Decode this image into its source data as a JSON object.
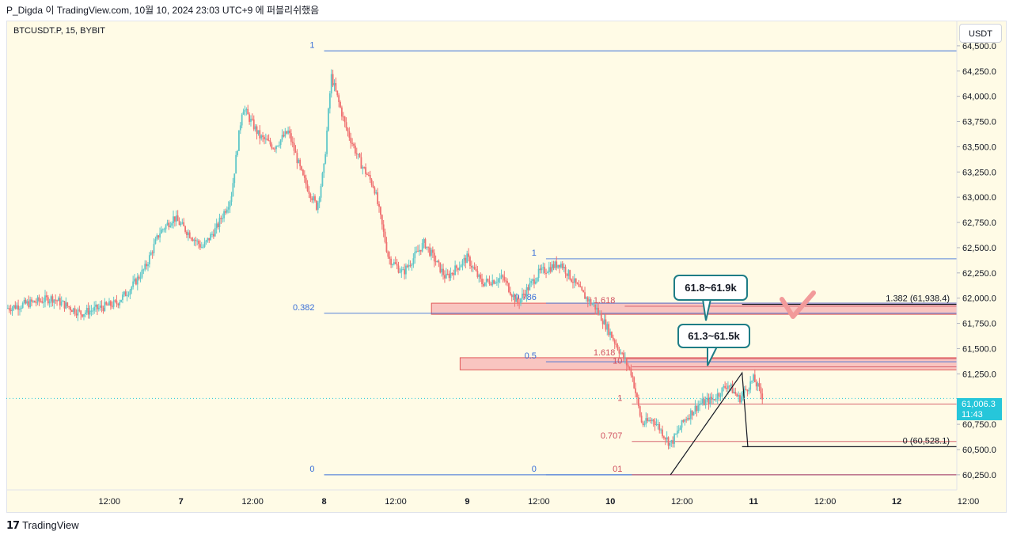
{
  "header": {
    "caption": "P_Digda 이 TradingView.com, 10월 10, 2024 23:03 UTC+9 에 퍼블리쉬했음"
  },
  "chart_header": {
    "symbol": "BTCUSDT.P, 15, BYBIT"
  },
  "axis": {
    "currency": "USDT",
    "price_ticks": [
      {
        "value": 64500,
        "label": "64,500.0"
      },
      {
        "value": 64250,
        "label": "64,250.0"
      },
      {
        "value": 64000,
        "label": "64,000.0"
      },
      {
        "value": 63750,
        "label": "63,750.0"
      },
      {
        "value": 63500,
        "label": "63,500.0"
      },
      {
        "value": 63250,
        "label": "63,250.0"
      },
      {
        "value": 63000,
        "label": "63,000.0"
      },
      {
        "value": 62750,
        "label": "62,750.0"
      },
      {
        "value": 62500,
        "label": "62,500.0"
      },
      {
        "value": 62250,
        "label": "62,250.0"
      },
      {
        "value": 62000,
        "label": "62,000.0"
      },
      {
        "value": 61750,
        "label": "61,750.0"
      },
      {
        "value": 61500,
        "label": "61,500.0"
      },
      {
        "value": 61250,
        "label": "61,250.0"
      },
      {
        "value": 60750,
        "label": "60,750.0"
      },
      {
        "value": 60500,
        "label": "60,500.0"
      },
      {
        "value": 60250,
        "label": "60,250.0"
      }
    ],
    "time_ticks": [
      {
        "t": 0.5,
        "label": "12:00"
      },
      {
        "t": 1,
        "label": "7"
      },
      {
        "t": 1.5,
        "label": "12:00"
      },
      {
        "t": 2,
        "label": "8"
      },
      {
        "t": 2.5,
        "label": "12:00"
      },
      {
        "t": 3,
        "label": "9"
      },
      {
        "t": 3.5,
        "label": "12:00"
      },
      {
        "t": 4,
        "label": "10"
      },
      {
        "t": 4.5,
        "label": "12:00"
      },
      {
        "t": 5,
        "label": "11"
      },
      {
        "t": 5.5,
        "label": "12:00"
      },
      {
        "t": 6,
        "label": "12"
      },
      {
        "t": 6.5,
        "label": "12:00"
      }
    ],
    "current_price": "61,006.3",
    "countdown": "11:43"
  },
  "annotations": {
    "upper_callout": "61.8~61.9k",
    "lower_callout": "61.3~61.5k"
  },
  "colors": {
    "background": "#fffbe6",
    "up": "#5fc7c9",
    "down": "#ef7070",
    "fib_blue": "#3a6fd8",
    "fib_red": "#d0505f",
    "zone_fill": "#f7b3b3",
    "zone_border": "#e05757",
    "check": "#f29a9a",
    "callout_border": "#1e7d86"
  },
  "chart_data": {
    "type": "candlestick",
    "title": "BTCUSDT.P, 15, BYBIT",
    "x_unit": "days since 6 Oct 00:00",
    "ylim": [
      60100,
      64750
    ],
    "xlim": [
      -0.22,
      6.42
    ],
    "current_price": 61006.3,
    "price_anchors": [
      {
        "t": -0.22,
        "price": 61900
      },
      {
        "t": 0.1,
        "price": 62000
      },
      {
        "t": 0.3,
        "price": 61850
      },
      {
        "t": 0.55,
        "price": 61950
      },
      {
        "t": 0.65,
        "price": 62100
      },
      {
        "t": 0.75,
        "price": 62300
      },
      {
        "t": 0.85,
        "price": 62650
      },
      {
        "t": 0.95,
        "price": 62800
      },
      {
        "t": 1.05,
        "price": 62650
      },
      {
        "t": 1.15,
        "price": 62500
      },
      {
        "t": 1.25,
        "price": 62700
      },
      {
        "t": 1.35,
        "price": 63000
      },
      {
        "t": 1.43,
        "price": 63900
      },
      {
        "t": 1.55,
        "price": 63600
      },
      {
        "t": 1.65,
        "price": 63500
      },
      {
        "t": 1.75,
        "price": 63650
      },
      {
        "t": 1.85,
        "price": 63200
      },
      {
        "t": 1.95,
        "price": 62900
      },
      {
        "t": 2.0,
        "price": 63300
      },
      {
        "t": 2.05,
        "price": 64200
      },
      {
        "t": 2.15,
        "price": 63700
      },
      {
        "t": 2.25,
        "price": 63350
      },
      {
        "t": 2.35,
        "price": 63100
      },
      {
        "t": 2.45,
        "price": 62400
      },
      {
        "t": 2.55,
        "price": 62250
      },
      {
        "t": 2.7,
        "price": 62550
      },
      {
        "t": 2.85,
        "price": 62200
      },
      {
        "t": 3.0,
        "price": 62400
      },
      {
        "t": 3.1,
        "price": 62150
      },
      {
        "t": 3.25,
        "price": 62200
      },
      {
        "t": 3.35,
        "price": 61950
      },
      {
        "t": 3.5,
        "price": 62250
      },
      {
        "t": 3.65,
        "price": 62350
      },
      {
        "t": 3.8,
        "price": 62050
      },
      {
        "t": 3.9,
        "price": 61900
      },
      {
        "t": 4.0,
        "price": 61650
      },
      {
        "t": 4.15,
        "price": 61250
      },
      {
        "t": 4.22,
        "price": 60750
      },
      {
        "t": 4.3,
        "price": 60800
      },
      {
        "t": 4.42,
        "price": 60550
      },
      {
        "t": 4.52,
        "price": 60800
      },
      {
        "t": 4.62,
        "price": 60950
      },
      {
        "t": 4.72,
        "price": 61000
      },
      {
        "t": 4.82,
        "price": 61150
      },
      {
        "t": 4.9,
        "price": 61000
      },
      {
        "t": 5.0,
        "price": 61200
      },
      {
        "t": 5.07,
        "price": 61006.3
      }
    ],
    "zones": [
      {
        "label": "61.8~61.9k",
        "from": 61840,
        "to": 61950,
        "t_start": 2.75
      },
      {
        "label": "61.3~61.5k",
        "from": 61290,
        "to": 61410,
        "t_start": 2.95
      }
    ],
    "fib_levels": [
      {
        "label": "1",
        "price": 64450,
        "t_start": 2.0
      },
      {
        "label": "0.382",
        "price": 61850,
        "t_start": 2.0
      },
      {
        "label": "0",
        "price": 60250,
        "t_start": 2.0
      },
      {
        "label": "1",
        "price": 62390,
        "t_start": 3.55
      },
      {
        "label": "0.786",
        "price": 61950,
        "t_start": 3.55
      },
      {
        "label": "0.5",
        "price": 61370,
        "t_start": 3.55
      },
      {
        "label": "0",
        "price": 60250,
        "t_start": 3.55
      },
      {
        "label": "1.618",
        "price": 61920,
        "t_start": 4.1
      },
      {
        "label": "1.618",
        "price": 61400,
        "t_start": 4.1
      },
      {
        "label": "10",
        "price": 61320,
        "t_start": 4.15
      },
      {
        "label": "1",
        "price": 60950,
        "t_start": 4.15
      },
      {
        "label": "0.707",
        "price": 60580,
        "t_start": 4.15
      },
      {
        "label": "01",
        "price": 60250,
        "t_start": 4.15
      },
      {
        "label": "1.382 (61,938.4)",
        "price": 61938.4,
        "t_start": 4.92
      },
      {
        "label": "0 (60,528.1)",
        "price": 60528.1,
        "t_start": 4.92
      }
    ],
    "trendline": [
      {
        "t": 4.42,
        "price": 60250
      },
      {
        "t": 4.92,
        "price": 61260
      },
      {
        "t": 4.96,
        "price": 60528.1
      }
    ]
  }
}
